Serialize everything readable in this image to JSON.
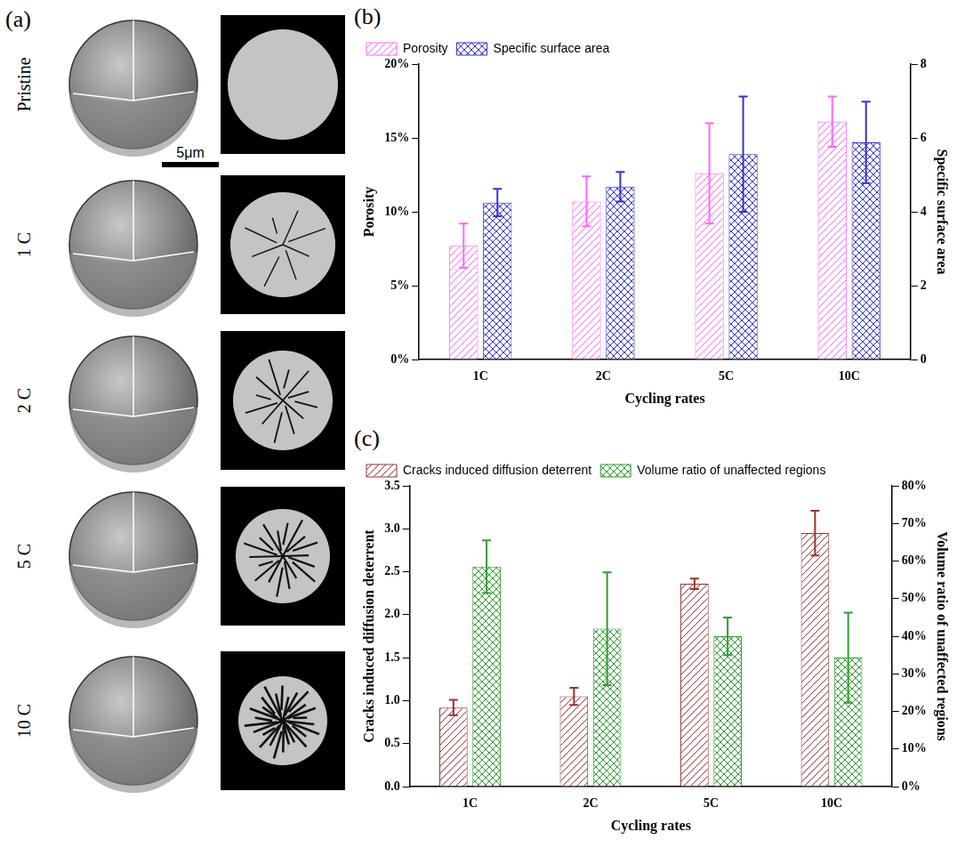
{
  "panel_a": {
    "panel_label": "(a)",
    "rows": [
      "Pristine",
      "1 C",
      "2 C",
      "5 C",
      "10 C"
    ],
    "scale_bar": "5μm"
  },
  "chart_data": [
    {
      "type": "bar",
      "panel_label": "(b)",
      "x_label": "Cycling rates",
      "y_label": "Porosity",
      "y2_label": "Specific surface area",
      "categories": [
        "1C",
        "2C",
        "5C",
        "10C"
      ],
      "series": [
        {
          "name": "Porosity",
          "color": "#ff66ff",
          "values": [
            7.7,
            10.7,
            12.6,
            16.1
          ],
          "errors": [
            1.5,
            1.7,
            3.4,
            1.7
          ]
        },
        {
          "name": "Specific surface area",
          "color": "#3333cc",
          "axis": "y2",
          "values": [
            4.25,
            4.68,
            5.56,
            5.88
          ],
          "errors": [
            0.37,
            0.4,
            1.56,
            1.1
          ]
        }
      ],
      "ylim": [
        0,
        20
      ],
      "yticks": [
        {
          "value": 0,
          "label": "0%"
        },
        {
          "value": 5,
          "label": "5%"
        },
        {
          "value": 10,
          "label": "10%"
        },
        {
          "value": 15,
          "label": "15%"
        },
        {
          "value": 20,
          "label": "20%"
        }
      ],
      "y2lim": [
        0,
        8
      ],
      "y2ticks": [
        0,
        2,
        4,
        6,
        8
      ],
      "grid": false,
      "legend": "top-left"
    },
    {
      "type": "bar",
      "panel_label": "(c)",
      "x_label": "Cycling rates",
      "y_label": "Cracks induced diffusion deterrent",
      "y2_label": "Volume ratio of unaffected regions",
      "categories": [
        "1C",
        "2C",
        "5C",
        "10C"
      ],
      "series": [
        {
          "name": "Cracks induced diffusion deterrent",
          "color": "#993333",
          "values": [
            0.92,
            1.05,
            2.36,
            2.95
          ],
          "errors": [
            0.09,
            0.1,
            0.06,
            0.26
          ]
        },
        {
          "name": "Volume ratio of unaffected regions",
          "color": "#339933",
          "axis": "y2",
          "values": [
            58.5,
            42,
            40,
            34.3
          ],
          "errors": [
            7,
            15,
            5,
            12
          ]
        }
      ],
      "ylim": [
        0,
        3.5
      ],
      "yticks": [
        {
          "value": 0,
          "label": "0.0"
        },
        0.5,
        {
          "value": 1,
          "label": "1.0"
        },
        1.5,
        {
          "value": 2,
          "label": "2.0"
        },
        2.5,
        {
          "value": 3,
          "label": "3.0"
        },
        3.5
      ],
      "y2lim": [
        0,
        80
      ],
      "y2ticks": [
        {
          "value": 0,
          "label": "0%"
        },
        {
          "value": 10,
          "label": "10%"
        },
        {
          "value": 20,
          "label": "20%"
        },
        {
          "value": 30,
          "label": "30%"
        },
        {
          "value": 40,
          "label": "40%"
        },
        {
          "value": 50,
          "label": "50%"
        },
        {
          "value": 60,
          "label": "60%"
        },
        {
          "value": 70,
          "label": "70%"
        },
        {
          "value": 80,
          "label": "80%"
        }
      ],
      "grid": false,
      "legend": "top-left"
    }
  ]
}
